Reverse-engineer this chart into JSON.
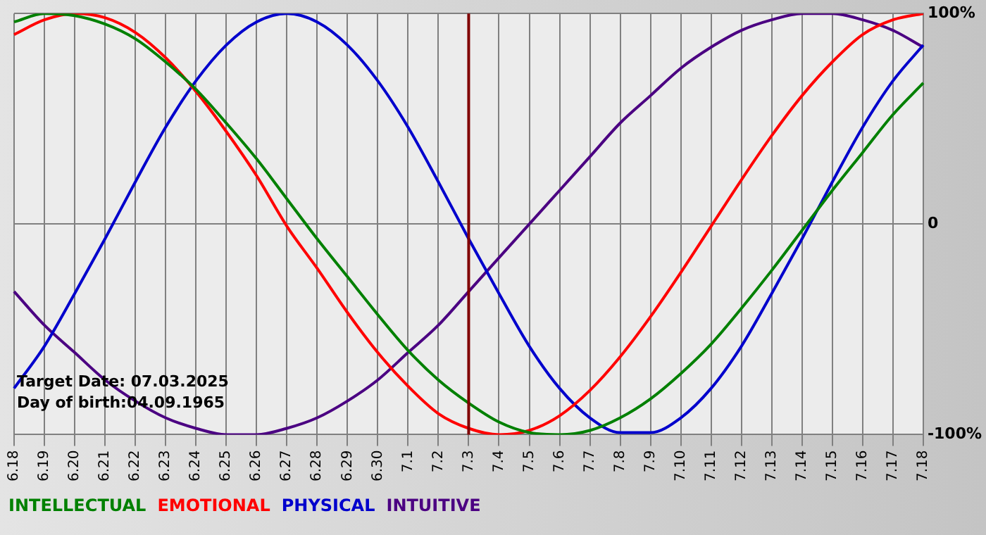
{
  "chart_data": {
    "type": "line",
    "categories": [
      "6.18",
      "6.19",
      "6.20",
      "6.21",
      "6.22",
      "6.23",
      "6.24",
      "6.25",
      "6.26",
      "6.27",
      "6.28",
      "6.29",
      "6.30",
      "7.1",
      "7.2",
      "7.3",
      "7.4",
      "7.5",
      "7.6",
      "7.7",
      "7.8",
      "7.9",
      "7.10",
      "7.11",
      "7.12",
      "7.13",
      "7.14",
      "7.15",
      "7.16",
      "7.17",
      "7.18"
    ],
    "series": [
      {
        "name": "INTELLECTUAL",
        "color": "#008000",
        "values": [
          96,
          100,
          99,
          95,
          88,
          77,
          64,
          48,
          31,
          12,
          -7,
          -25,
          -43,
          -60,
          -74,
          -85,
          -94,
          -99,
          -100,
          -98,
          -92,
          -83,
          -71,
          -57,
          -40,
          -22,
          -3,
          16,
          34,
          52,
          67
        ]
      },
      {
        "name": "EMOTIONAL",
        "color": "#ff0000",
        "values": [
          90,
          97,
          100,
          98,
          91,
          79,
          63,
          44,
          23,
          -1,
          -21,
          -42,
          -61,
          -77,
          -90,
          -97,
          -100,
          -98,
          -91,
          -79,
          -63,
          -44,
          -23,
          -1,
          21,
          42,
          61,
          77,
          90,
          97,
          100
        ]
      },
      {
        "name": "PHYSICAL",
        "color": "#0000cc",
        "values": [
          -78,
          -58,
          -33,
          -7,
          20,
          46,
          68,
          85,
          96,
          100,
          96,
          85,
          68,
          46,
          20,
          -7,
          -33,
          -58,
          -78,
          -92,
          -99,
          -99,
          -92,
          -78,
          -58,
          -33,
          -7,
          20,
          46,
          68,
          85
        ]
      },
      {
        "name": "INTUITIVE",
        "color": "#4b0082",
        "values": [
          -32,
          -48,
          -61,
          -74,
          -84,
          -92,
          -97,
          -100,
          -100,
          -97,
          -92,
          -84,
          -74,
          -61,
          -48,
          -32,
          -16,
          0,
          16,
          32,
          48,
          61,
          74,
          84,
          92,
          97,
          100,
          100,
          97,
          92,
          84
        ]
      }
    ],
    "ylim": [
      -100,
      100
    ],
    "yticks": [
      {
        "value": -100,
        "label": "-100%"
      },
      0,
      {
        "value": 100,
        "label": "100%"
      }
    ],
    "grid": true,
    "legend": "bottom left",
    "marker": "none",
    "line_style": "solid",
    "ref_lines": [
      {
        "axis": "x",
        "value": "7.3",
        "color": "#800000"
      }
    ],
    "annotations": [
      "Target Date: 07.03.2025",
      "Day of birth:04.09.1965"
    ]
  }
}
